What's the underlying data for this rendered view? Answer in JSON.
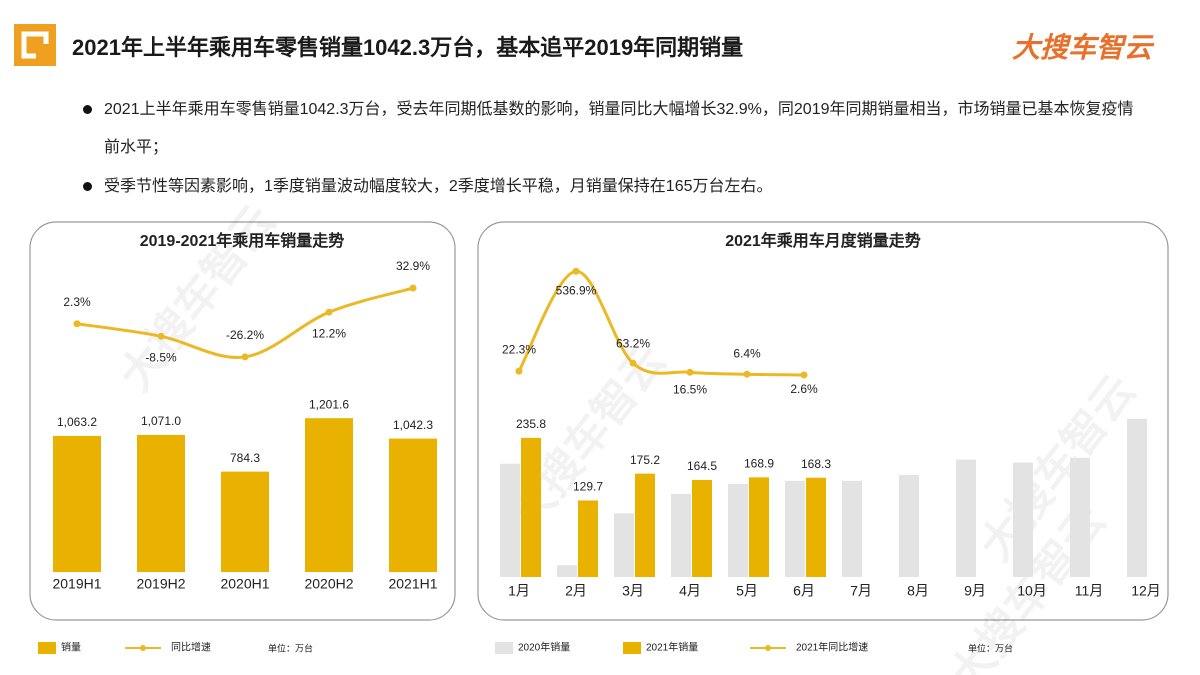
{
  "header": {
    "title": "2021年上半年乘用车零售销量1042.3万台，基本追平2019年同期销量",
    "logo": "大搜车智云"
  },
  "bullets": [
    "2021上半年乘用车零售销量1042.3万台，受去年同期低基数的影响，销量同比大幅增长32.9%，同2019年同期销量相当，市场销量已基本恢复疫情前水平；",
    "受季节性等因素影响，1季度销量波动幅度较大，2季度增长平稳，月销量保持在165万台左右。"
  ],
  "watermark": "大搜车智云",
  "chart_data": [
    {
      "type": "combo",
      "title": "2019-2021年乘用车销量走势",
      "unit": "单位：万台",
      "categories": [
        "2019H1",
        "2019H2",
        "2020H1",
        "2020H2",
        "2021H1"
      ],
      "ylim": [
        0,
        1500
      ],
      "y2lim": [
        -46,
        57
      ],
      "series": [
        {
          "name": "销量",
          "type": "bar",
          "color": "#e9b100",
          "data_labels": true,
          "values": [
            1063.2,
            1071.0,
            784.3,
            1201.6,
            1042.3
          ],
          "value_labels": [
            "1,063.2",
            "1,071.0",
            "784.3",
            "1,201.6",
            "1,042.3"
          ]
        },
        {
          "name": "同比增速",
          "type": "line",
          "axis": "y2",
          "color": "#ebb925",
          "data_labels": true,
          "values": [
            2.3,
            -8.5,
            -26.2,
            12.2,
            32.9
          ],
          "value_labels": [
            "2.3%",
            "-8.5%",
            "-26.2%",
            "12.2%",
            "32.9%"
          ]
        }
      ]
    },
    {
      "type": "combo",
      "title": "2021年乘用车月度销量走势",
      "unit": "单位：万台",
      "categories": [
        "1月",
        "2月",
        "3月",
        "4月",
        "5月",
        "6月",
        "7月",
        "8月",
        "9月",
        "10月",
        "11月",
        "12月"
      ],
      "ylim": [
        0,
        300
      ],
      "y2lim": [
        -75,
        595
      ],
      "series": [
        {
          "name": "2020年销量",
          "type": "bar",
          "color": "#e3e3e3",
          "data_labels": false,
          "values": [
            192,
            20,
            108,
            141,
            158,
            163,
            163,
            173,
            199,
            194,
            202,
            268
          ]
        },
        {
          "name": "2021年销量",
          "type": "bar",
          "color": "#e9b100",
          "data_labels": true,
          "values": [
            235.8,
            129.7,
            175.2,
            164.5,
            168.9,
            168.3,
            null,
            null,
            null,
            null,
            null,
            null
          ]
        },
        {
          "name": "2021年同比增速",
          "type": "line",
          "axis": "y2",
          "color": "#ebb925",
          "data_labels": true,
          "values": [
            22.3,
            536.9,
            63.2,
            16.5,
            6.4,
            2.6,
            null,
            null,
            null,
            null,
            null,
            null
          ],
          "value_labels": [
            "22.3%",
            "536.9%",
            "63.2%",
            "16.5%",
            "6.4%",
            "2.6%",
            null,
            null,
            null,
            null,
            null,
            null
          ]
        }
      ]
    }
  ]
}
